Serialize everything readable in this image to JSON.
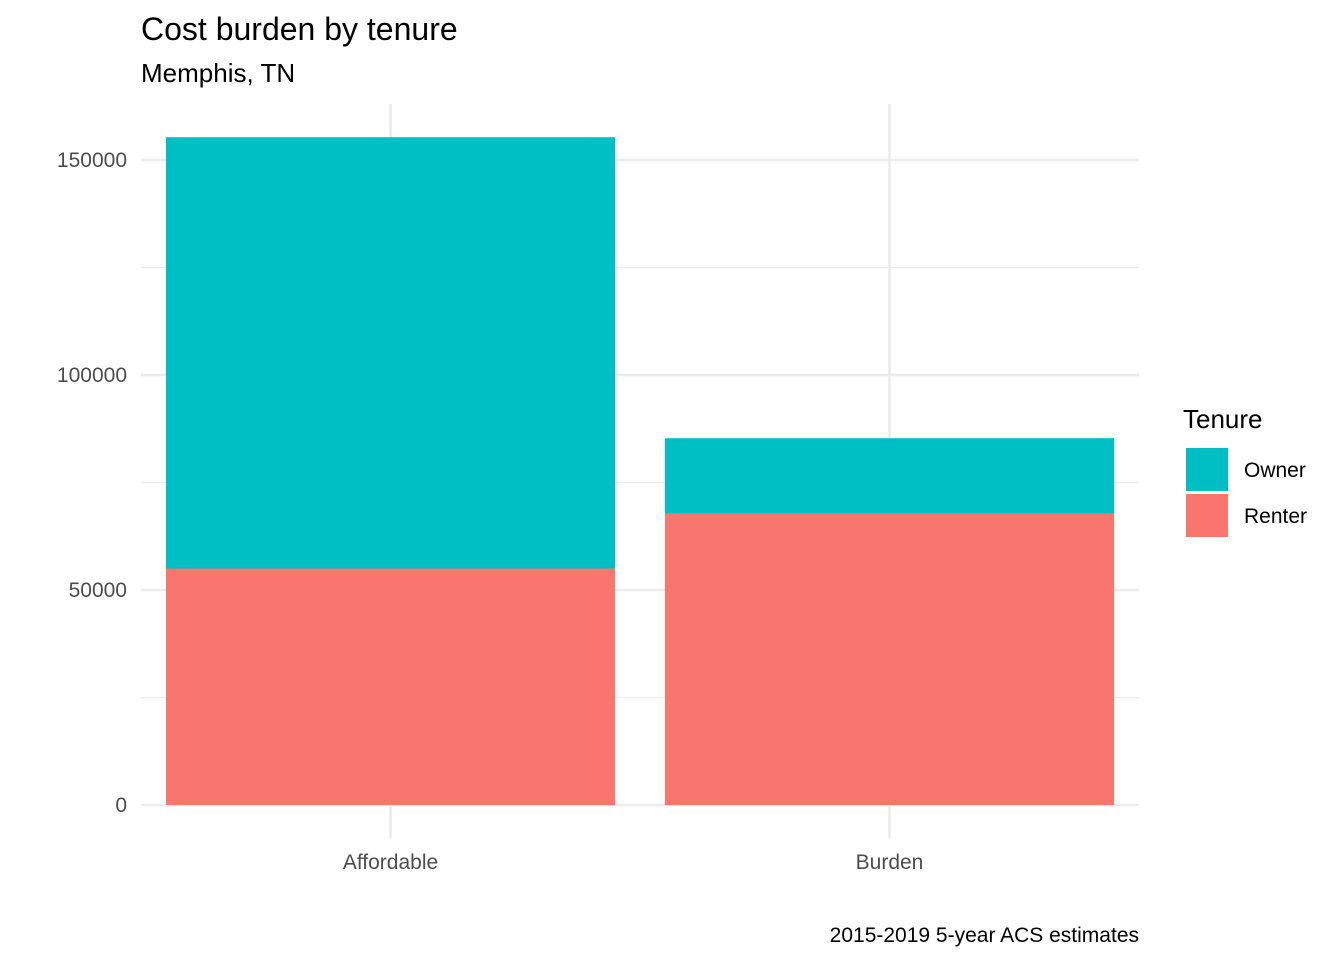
{
  "chart_data": {
    "type": "bar",
    "stacked": true,
    "title": "Cost burden by tenure",
    "subtitle": "Memphis, TN",
    "caption": "2015-2019 5-year ACS estimates",
    "xlabel": "",
    "ylabel": "",
    "categories": [
      "Affordable",
      "Burden"
    ],
    "series": [
      {
        "name": "Renter",
        "values": [
          55000,
          67800
        ],
        "color": "#F8766D"
      },
      {
        "name": "Owner",
        "values": [
          100300,
          17500
        ],
        "color": "#00BFC4"
      }
    ],
    "ylim": [
      0,
      160000
    ],
    "yticks": [
      0,
      50000,
      100000,
      150000
    ],
    "ytick_labels": [
      "0",
      "50000",
      "100000",
      "150000"
    ],
    "grid": true,
    "legend": {
      "title": "Tenure",
      "position": "right",
      "entries": [
        {
          "label": "Owner",
          "color": "#00BFC4"
        },
        {
          "label": "Renter",
          "color": "#F8766D"
        }
      ]
    }
  }
}
